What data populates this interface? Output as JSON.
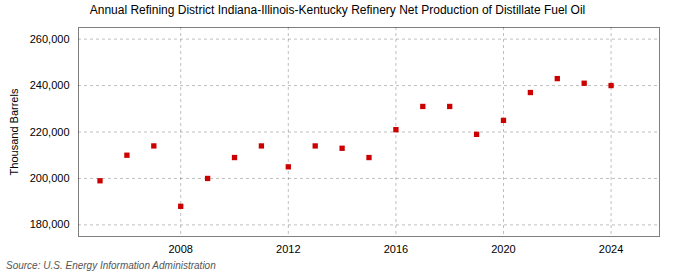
{
  "chart_data": {
    "type": "scatter",
    "title": "Annual Refining District Indiana-Illinois-Kentucky Refinery Net Production of Distillate Fuel Oil",
    "ylabel": "Thousand Barrels",
    "annotations": [
      "Source: U.S. Energy Information Administration"
    ],
    "x": [
      2005,
      2006,
      2007,
      2008,
      2009,
      2010,
      2011,
      2012,
      2013,
      2014,
      2015,
      2016,
      2017,
      2018,
      2019,
      2020,
      2021,
      2022,
      2023,
      2024
    ],
    "values": [
      199000,
      210000,
      214000,
      188000,
      200000,
      209000,
      214000,
      205000,
      214000,
      213000,
      209000,
      221000,
      231000,
      231000,
      219000,
      225000,
      237000,
      243000,
      241000,
      240000
    ],
    "color": "#cc0000",
    "marker": "square",
    "xlim": [
      2004.2,
      2025.8
    ],
    "xticks": [
      2008,
      2012,
      2016,
      2020,
      2024
    ],
    "ylim": [
      175000,
      265000
    ],
    "yticks": [
      {
        "value": 180000,
        "label": "180,000"
      },
      {
        "value": 200000,
        "label": "200,000"
      },
      {
        "value": 220000,
        "label": "220,000"
      },
      {
        "value": 240000,
        "label": "240,000"
      },
      {
        "value": 260000,
        "label": "260,000"
      }
    ],
    "grid": true
  }
}
